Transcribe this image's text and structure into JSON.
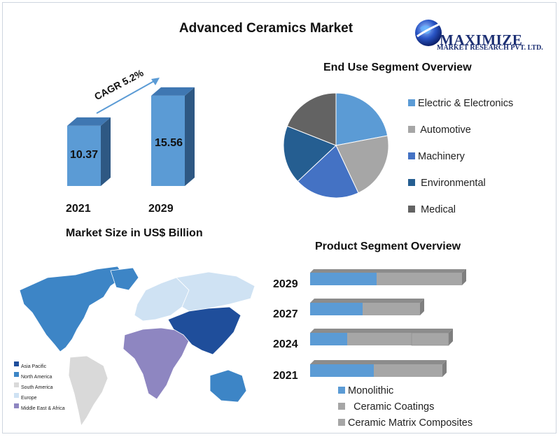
{
  "title": "Advanced Ceramics Market",
  "logo": {
    "line1": "MAXIMIZE",
    "line2": "MARKET RESEARCH PVT. LTD."
  },
  "colors": {
    "bar_blue": "#5b9bd5",
    "bar_dark": "#2e5883",
    "grey": "#a6a6a6",
    "electric": "#5b9bd5",
    "automotive": "#a6a6a6",
    "machinery": "#4472c4",
    "environmental": "#255e91",
    "medical": "#636363",
    "asia_pacific": "#1f4e9b",
    "north_america": "#3d85c6",
    "south_america": "#d9d9d9",
    "europe": "#cfe2f3",
    "mea": "#8e86c1"
  },
  "market_size": {
    "caption": "Market Size in US$ Billion",
    "cagr_label": "CAGR 5.2%"
  },
  "end_use": {
    "title": "End Use Segment Overview"
  },
  "product": {
    "title": "Product  Segment Overview"
  },
  "map": {
    "legend": [
      "Asia Pacific",
      "North America",
      "South America",
      "Europe",
      "Middle East & Africa"
    ]
  },
  "chart_data": [
    {
      "type": "bar",
      "categories": [
        "2021",
        "2029"
      ],
      "values": [
        10.37,
        15.56
      ],
      "title": "",
      "xlabel": "Market Size in US$ Billion",
      "ylabel": ""
    },
    {
      "type": "pie",
      "title": "End Use Segment Overview",
      "labels": [
        "Electric & Electronics",
        "Automotive",
        "Machinery",
        "Environmental",
        "Medical"
      ],
      "values": [
        22,
        21,
        20,
        18,
        19
      ]
    },
    {
      "type": "bar",
      "orientation": "horizontal",
      "stacked": true,
      "title": "Product  Segment Overview",
      "categories": [
        "2029",
        "2027",
        "2024",
        "2021"
      ],
      "series": [
        {
          "name": "Monolithic",
          "values": [
            95,
            75,
            53,
            91
          ]
        },
        {
          "name": "Ceramic Coatings",
          "values": [
            122,
            82,
            92,
            98
          ]
        },
        {
          "name": "Ceramic Matrix Composites",
          "values": [
            0,
            0,
            53,
            0
          ]
        }
      ]
    }
  ]
}
